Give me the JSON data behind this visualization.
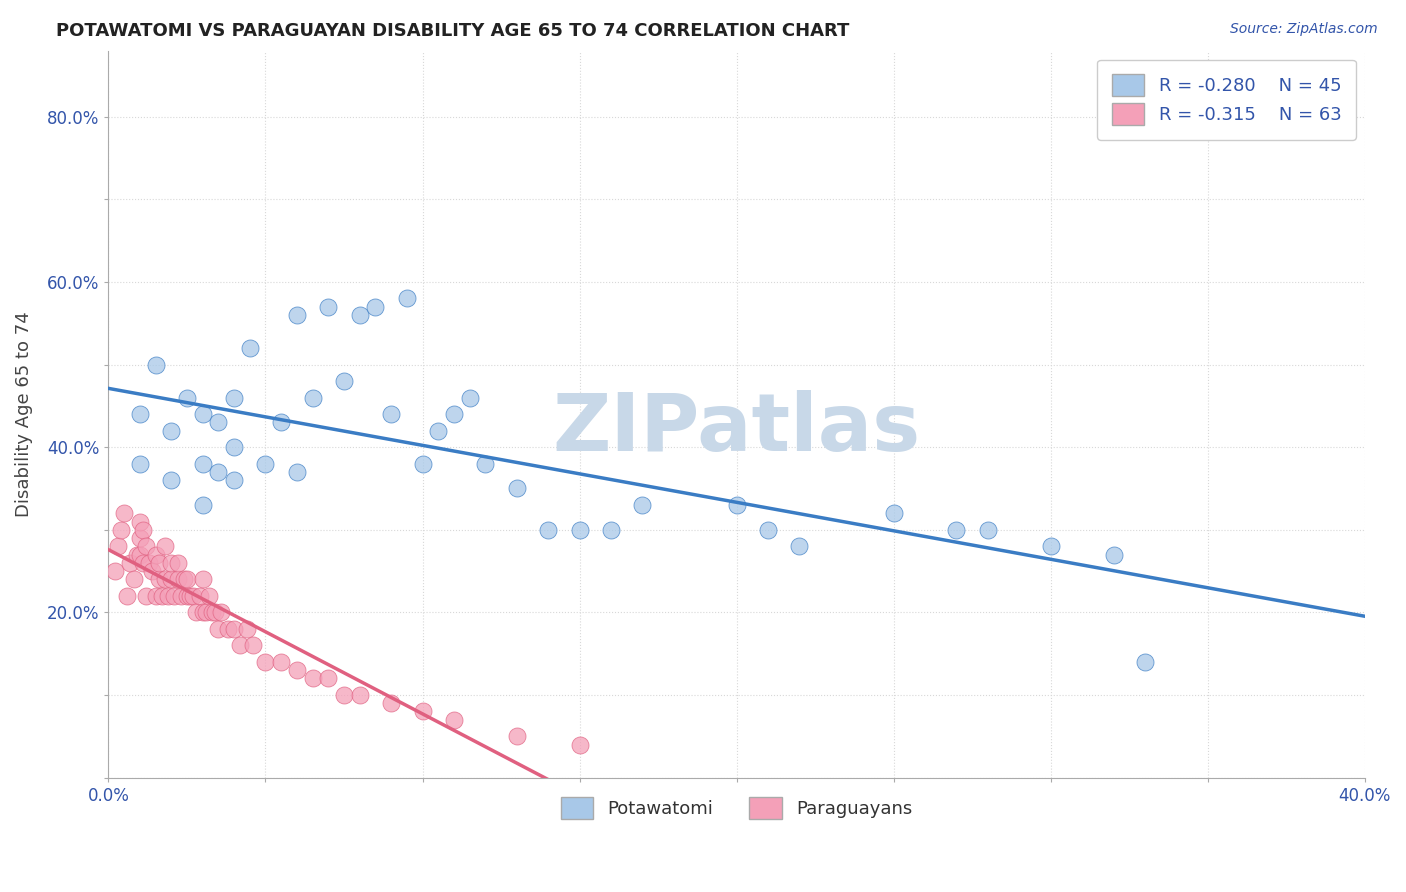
{
  "title": "POTAWATOMI VS PARAGUAYAN DISABILITY AGE 65 TO 74 CORRELATION CHART",
  "source_text": "Source: ZipAtlas.com",
  "ylabel": "Disability Age 65 to 74",
  "xlim": [
    0.0,
    0.4
  ],
  "ylim": [
    0.0,
    0.88
  ],
  "xticks": [
    0.0,
    0.05,
    0.1,
    0.15,
    0.2,
    0.25,
    0.3,
    0.35,
    0.4
  ],
  "yticks": [
    0.0,
    0.1,
    0.2,
    0.3,
    0.4,
    0.5,
    0.6,
    0.7,
    0.8
  ],
  "color_blue": "#a8c8e8",
  "color_pink": "#f4a0b8",
  "trendline_blue": "#3a7cc4",
  "trendline_pink": "#e06080",
  "grid_color": "#d8d8d8",
  "background_color": "#ffffff",
  "watermark": "ZIPatlas",
  "watermark_color": "#c8d8e8",
  "potawatomi_x": [
    0.01,
    0.01,
    0.015,
    0.02,
    0.02,
    0.025,
    0.03,
    0.03,
    0.03,
    0.035,
    0.035,
    0.04,
    0.04,
    0.04,
    0.045,
    0.05,
    0.055,
    0.06,
    0.06,
    0.065,
    0.07,
    0.075,
    0.08,
    0.085,
    0.09,
    0.095,
    0.1,
    0.105,
    0.11,
    0.115,
    0.12,
    0.13,
    0.14,
    0.15,
    0.16,
    0.17,
    0.2,
    0.21,
    0.22,
    0.25,
    0.27,
    0.28,
    0.3,
    0.32,
    0.33
  ],
  "potawatomi_y": [
    0.38,
    0.44,
    0.5,
    0.36,
    0.42,
    0.46,
    0.33,
    0.38,
    0.44,
    0.37,
    0.43,
    0.36,
    0.4,
    0.46,
    0.52,
    0.38,
    0.43,
    0.37,
    0.56,
    0.46,
    0.57,
    0.48,
    0.56,
    0.57,
    0.44,
    0.58,
    0.38,
    0.42,
    0.44,
    0.46,
    0.38,
    0.35,
    0.3,
    0.3,
    0.3,
    0.33,
    0.33,
    0.3,
    0.28,
    0.32,
    0.3,
    0.3,
    0.28,
    0.27,
    0.14
  ],
  "paraguayan_x": [
    0.002,
    0.003,
    0.004,
    0.005,
    0.006,
    0.007,
    0.008,
    0.009,
    0.01,
    0.01,
    0.01,
    0.011,
    0.011,
    0.012,
    0.012,
    0.013,
    0.014,
    0.015,
    0.015,
    0.016,
    0.016,
    0.017,
    0.018,
    0.018,
    0.019,
    0.02,
    0.02,
    0.021,
    0.022,
    0.022,
    0.023,
    0.024,
    0.025,
    0.025,
    0.026,
    0.027,
    0.028,
    0.029,
    0.03,
    0.03,
    0.031,
    0.032,
    0.033,
    0.034,
    0.035,
    0.036,
    0.038,
    0.04,
    0.042,
    0.044,
    0.046,
    0.05,
    0.055,
    0.06,
    0.065,
    0.07,
    0.075,
    0.08,
    0.09,
    0.1,
    0.11,
    0.13,
    0.15
  ],
  "paraguayan_y": [
    0.25,
    0.28,
    0.3,
    0.32,
    0.22,
    0.26,
    0.24,
    0.27,
    0.27,
    0.29,
    0.31,
    0.26,
    0.3,
    0.22,
    0.28,
    0.26,
    0.25,
    0.22,
    0.27,
    0.24,
    0.26,
    0.22,
    0.24,
    0.28,
    0.22,
    0.24,
    0.26,
    0.22,
    0.24,
    0.26,
    0.22,
    0.24,
    0.22,
    0.24,
    0.22,
    0.22,
    0.2,
    0.22,
    0.2,
    0.24,
    0.2,
    0.22,
    0.2,
    0.2,
    0.18,
    0.2,
    0.18,
    0.18,
    0.16,
    0.18,
    0.16,
    0.14,
    0.14,
    0.13,
    0.12,
    0.12,
    0.1,
    0.1,
    0.09,
    0.08,
    0.07,
    0.05,
    0.04
  ]
}
